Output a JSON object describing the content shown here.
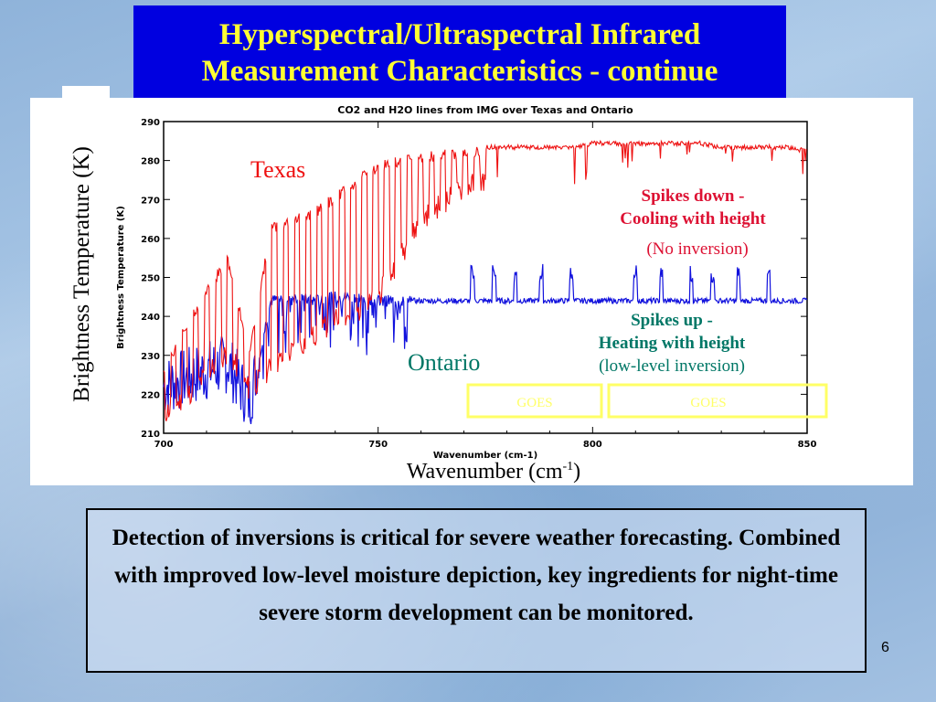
{
  "slide": {
    "title_line1": "Hyperspectral/Ultraspectral Infrared",
    "title_line2": "Measurement Characteristics - continue",
    "ylabel": "Brightness Temperature (K)",
    "xlabel": "Wavenumber (cm",
    "xlabel_sup": "-1",
    "xlabel_close": ")",
    "body_text": "Detection of inversions is critical for severe weather forecasting.  Combined with improved low-level moisture depiction, key ingredients for night-time severe storm development can be monitored.",
    "page_number": "6",
    "colors": {
      "title_bg": "#0000e0",
      "title_text": "#ffff33",
      "texas": "#ee1111",
      "ontario": "#1111dd",
      "goes_box": "#ffff66",
      "annotation_red": "#dd1133",
      "annotation_green": "#007766"
    }
  },
  "chart_data": {
    "type": "line",
    "title": "CO2 and H2O lines from IMG over Texas and Ontario",
    "xlabel": "Wavenumber (cm-1)",
    "ylabel": "Brightness Temperature (K)",
    "xlim": [
      700,
      850
    ],
    "ylim": [
      210,
      290
    ],
    "xticks": [
      "700",
      "750",
      "800",
      "850"
    ],
    "yticks": [
      "210",
      "220",
      "230",
      "240",
      "250",
      "260",
      "270",
      "280",
      "290"
    ],
    "series": [
      {
        "name": "Texas",
        "color": "#ee1111",
        "x": [
          700,
          705,
          710,
          715,
          720,
          725,
          730,
          735,
          740,
          745,
          750,
          755,
          760,
          765,
          770,
          775,
          780,
          785,
          790,
          795,
          800,
          805,
          810,
          815,
          820,
          825,
          830,
          835,
          840,
          845,
          850
        ],
        "y_upper": [
          228,
          238,
          248,
          256,
          232,
          264,
          266,
          268,
          272,
          276,
          280,
          281,
          282,
          283,
          283,
          284,
          284,
          284,
          284,
          284,
          285,
          285,
          285,
          285,
          285,
          285,
          284,
          284,
          284,
          284,
          283
        ],
        "y_lower": [
          212,
          216,
          222,
          228,
          218,
          224,
          228,
          232,
          236,
          238,
          242,
          252,
          262,
          266,
          270,
          272,
          272,
          270,
          270,
          272,
          274,
          278,
          276,
          278,
          280,
          278,
          280,
          278,
          280,
          278,
          276
        ]
      },
      {
        "name": "Ontario",
        "color": "#1111dd",
        "x": [
          700,
          705,
          710,
          715,
          720,
          725,
          730,
          735,
          740,
          745,
          750,
          755,
          760,
          765,
          770,
          775,
          780,
          785,
          790,
          795,
          800,
          805,
          810,
          815,
          820,
          825,
          830,
          835,
          840,
          845,
          850
        ],
        "y": [
          222,
          224,
          226,
          228,
          218,
          244,
          245,
          244,
          245,
          245,
          244,
          244,
          244,
          244,
          244,
          244,
          244,
          244,
          244,
          244,
          244,
          244,
          244,
          244,
          244,
          244,
          244,
          244,
          244,
          244,
          244
        ],
        "spikes_up_at": [
          772,
          777,
          782,
          788,
          795,
          810,
          816,
          823,
          828,
          834,
          841
        ]
      }
    ],
    "annotations": [
      {
        "text": "Texas",
        "color": "#ee1111"
      },
      {
        "text": "Ontario",
        "color": "#007766"
      },
      {
        "text": "Spikes down -",
        "color": "#dd1133"
      },
      {
        "text": "Cooling with height",
        "color": "#dd1133"
      },
      {
        "text": "(No inversion)",
        "color": "#dd1133"
      },
      {
        "text": "Spikes up -",
        "color": "#007766"
      },
      {
        "text": "Heating with height",
        "color": "#007766"
      },
      {
        "text": "(low-level inversion)",
        "color": "#007766"
      },
      {
        "text": "GOES",
        "color": "#ffff66"
      },
      {
        "text": "GOES",
        "color": "#ffff66"
      }
    ]
  }
}
